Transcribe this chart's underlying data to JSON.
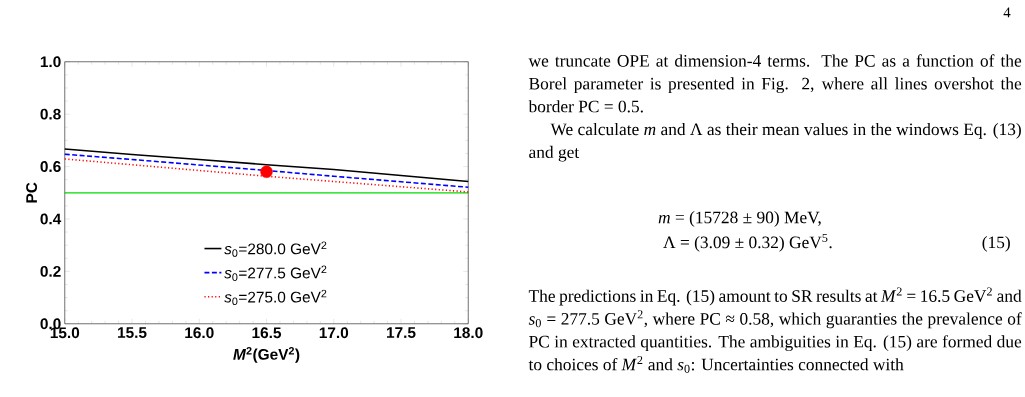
{
  "chart_data": {
    "type": "line",
    "xlabel": "*M*$^{2}$(GeV$^{2}$)",
    "ylabel": "PC",
    "xlim": [
      15,
      18
    ],
    "ylim": [
      0,
      1
    ],
    "xticks": [
      {
        "value": 15,
        "label": "15.0"
      },
      {
        "value": 15.5,
        "label": "15.5"
      },
      {
        "value": 16,
        "label": "16.0"
      },
      {
        "value": 16.5,
        "label": "16.5"
      },
      {
        "value": 17,
        "label": "17.0"
      },
      {
        "value": 17.5,
        "label": "17.5"
      },
      {
        "value": 18,
        "label": "18.0"
      }
    ],
    "yticks": [
      {
        "value": 0,
        "label": "0.0"
      },
      {
        "value": 0.2,
        "label": "0.2"
      },
      {
        "value": 0.4,
        "label": "0.4"
      },
      {
        "value": 0.6,
        "label": "0.6"
      },
      {
        "value": 0.8,
        "label": "0.8"
      },
      {
        "value": 1,
        "label": "1.0"
      }
    ],
    "series": [
      {
        "name": "*s*$_{0}$=280.0 GeV$^{2}$",
        "color": "#000000",
        "line_style": "solid",
        "x": [
          15,
          15.5,
          16,
          16.5,
          17,
          17.5,
          18
        ],
        "values": [
          0.667,
          0.646,
          0.627,
          0.607,
          0.589,
          0.566,
          0.543
        ]
      },
      {
        "name": "*s*$_{0}$=277.5 GeV$^{2}$",
        "color": "#0000ff",
        "line_style": "dashed",
        "x": [
          15,
          15.5,
          16,
          16.5,
          17,
          17.5,
          18
        ],
        "values": [
          0.647,
          0.627,
          0.606,
          0.585,
          0.563,
          0.542,
          0.521
        ]
      },
      {
        "name": "*s*$_{0}$=275.0 GeV$^{2}$",
        "color": "#ff0000",
        "line_style": "dotted",
        "x": [
          15,
          15.5,
          16,
          16.5,
          17,
          17.5,
          18
        ],
        "values": [
          0.629,
          0.607,
          0.585,
          0.563,
          0.543,
          0.523,
          0.503
        ]
      },
      {
        "type": "scatter",
        "marker": "circle",
        "color": "#ff0000",
        "x": [
          16.5
        ],
        "values": [
          0.58
        ]
      }
    ],
    "ref_lines": [
      {
        "axis": "y",
        "value": 0.5,
        "color": "#00dd00"
      }
    ],
    "legend": "bottom",
    "grid": false,
    "marker": "none",
    "annotations": [
      "4",
      "we truncate OPE at dimension-4 terms. The PC as a function of the Borel parameter is presented in Fig. 2, where all lines overshot the border PC = 0.5.",
      "We calculate *m* and Λ as their mean values in the windows Eq. (13) and get",
      "*m* = (15728 ± 90) MeV,",
      "Λ = (3.09 ± 0.32) GeV$^{5}$.",
      "(15)",
      "The predictions in Eq. (15) amount to SR results at *M*$^{2}$ = 16.5 GeV$^{2}$ and *s*$_{0}$ = 277.5 GeV$^{2}$, where PC ≈ 0.58, which guaranties the prevalence of PC in extracted quantities. The ambiguities in Eq. (15) are formed due to choices of *M*$^{2}$ and *s*$_{0}$: Uncertainties connected with"
    ]
  }
}
